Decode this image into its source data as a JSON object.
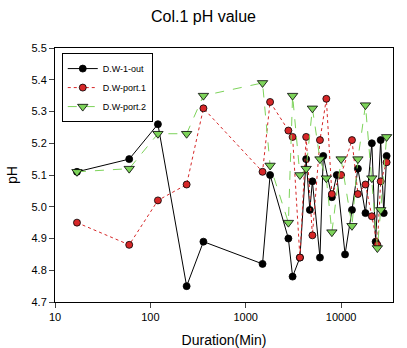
{
  "chart_data": {
    "type": "line",
    "title": "Col.1 pH value",
    "x_label": "Duration(Min)",
    "y_label": "pH",
    "log": "x",
    "grid": false,
    "legend": "upper left",
    "xlim": [
      10,
      35000
    ],
    "xticks": [
      10,
      100,
      1000,
      10000
    ],
    "ylim": [
      4.7,
      5.5
    ],
    "yticks": [
      4.7,
      4.8,
      4.9,
      {
        "value": 5,
        "label": "5.0"
      },
      5.1,
      5.2,
      5.3,
      5.4,
      5.5
    ],
    "series": [
      {
        "name": "D.W-1-out",
        "color": "#000000",
        "marker": "circle",
        "line_style": "solid",
        "x": [
          17,
          60,
          120,
          240,
          360,
          1500,
          1800,
          2800,
          3100,
          3700,
          4300,
          4700,
          5000,
          6000,
          6500,
          8000,
          9000,
          11000,
          13000,
          15000,
          18000,
          21000,
          23000,
          26000,
          28000,
          30000
        ],
        "values": [
          5.11,
          5.15,
          5.26,
          4.75,
          4.89,
          4.82,
          5.1,
          4.9,
          4.78,
          4.84,
          5.15,
          4.99,
          5.08,
          4.84,
          5.16,
          5.03,
          5.1,
          4.85,
          4.99,
          5.12,
          4.98,
          5.2,
          4.89,
          5.21,
          4.98,
          5.16
        ]
      },
      {
        "name": "D.W-port.1",
        "color": "#d62728",
        "marker": "circle",
        "line_style": "dot",
        "x": [
          17,
          60,
          120,
          240,
          360,
          1500,
          1800,
          2800,
          3100,
          3700,
          4300,
          5000,
          6000,
          7000,
          8000,
          10000,
          13000,
          15000,
          18000,
          21000,
          24000,
          26000,
          30000
        ],
        "values": [
          4.95,
          4.88,
          5.02,
          5.07,
          5.31,
          5.11,
          5.33,
          5.24,
          5.22,
          4.84,
          5.22,
          4.91,
          5.21,
          5.34,
          5.04,
          5.1,
          5.21,
          5.04,
          5.07,
          4.97,
          4.88,
          5.08,
          5.14
        ]
      },
      {
        "name": "D.W-port.2",
        "color": "#7dd35a",
        "marker": "triangle-down",
        "line_style": "dash",
        "x": [
          17,
          60,
          120,
          240,
          360,
          1500,
          1800,
          2800,
          3100,
          3700,
          4300,
          5000,
          6000,
          7000,
          8000,
          10000,
          13000,
          15000,
          18000,
          21000,
          24000,
          26000,
          30000
        ],
        "values": [
          5.11,
          5.12,
          5.23,
          5.23,
          5.35,
          5.39,
          5.13,
          4.95,
          5.35,
          5.1,
          5.12,
          5.31,
          5.15,
          5.09,
          4.92,
          5.15,
          4.94,
          5.15,
          5.32,
          5.09,
          4.87,
          4.99,
          5.22
        ]
      }
    ]
  }
}
